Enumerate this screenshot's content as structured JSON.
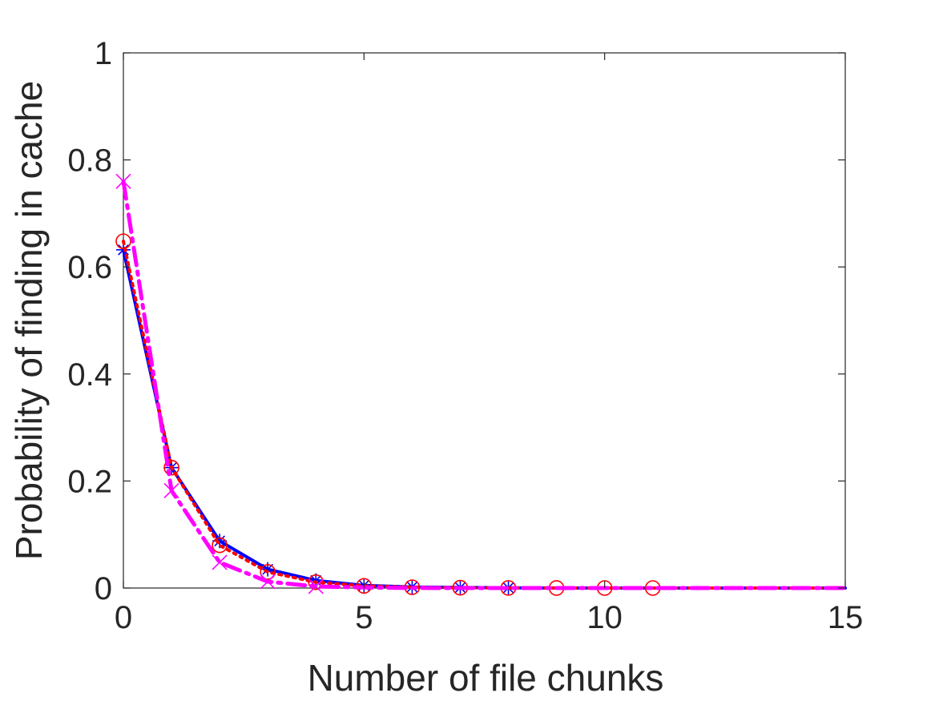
{
  "chart_data": {
    "type": "line",
    "xlabel": "Number of file chunks",
    "ylabel": "Probability of finding in cache",
    "xlim": [
      0,
      15
    ],
    "ylim": [
      0,
      1
    ],
    "xticks": [
      0,
      5,
      10,
      15
    ],
    "yticks": [
      0,
      0.2,
      0.4,
      0.6,
      0.8,
      1
    ],
    "xtick_labels": [
      "0",
      "5",
      "10",
      "15"
    ],
    "ytick_labels": [
      "0",
      "0.2",
      "0.4",
      "0.6",
      "0.8",
      "1"
    ],
    "grid": false,
    "series": [
      {
        "color": "#0000ff",
        "line_style": "solid",
        "marker": "asterisk",
        "x": [
          0,
          1,
          2,
          3,
          4,
          5,
          6,
          7,
          8,
          9,
          10,
          11,
          12,
          13,
          14,
          15
        ],
        "y": [
          0.632,
          0.225,
          0.088,
          0.035,
          0.014,
          0.005,
          0.002,
          0.001,
          0.0004,
          0,
          0,
          0,
          0,
          0,
          0,
          0
        ],
        "marker_x": [
          0,
          1,
          2,
          3,
          4,
          5,
          6,
          7,
          8
        ]
      },
      {
        "color": "#ff0000",
        "line_style": "dotted",
        "marker": "circle",
        "x": [
          0,
          1,
          2,
          3,
          4,
          5,
          6,
          7,
          8,
          9,
          10,
          11,
          12,
          13,
          14,
          15
        ],
        "y": [
          0.648,
          0.225,
          0.08,
          0.03,
          0.011,
          0.004,
          0.0015,
          0.0006,
          0.0002,
          0.0001,
          0,
          0,
          0,
          0,
          0,
          0
        ],
        "marker_x": [
          0,
          1,
          2,
          3,
          4,
          5,
          6,
          7,
          8,
          9,
          10,
          11
        ]
      },
      {
        "color": "#ff00ff",
        "line_style": "dashdot",
        "marker": "cross",
        "x": [
          0,
          1,
          2,
          3,
          4,
          5,
          6,
          7,
          8,
          9,
          10,
          11,
          12,
          13,
          14,
          15
        ],
        "y": [
          0.76,
          0.182,
          0.048,
          0.012,
          0.003,
          0.001,
          0.0002,
          0,
          0,
          0,
          0,
          0,
          0,
          0,
          0,
          0
        ],
        "marker_x": [
          0,
          1,
          2,
          3,
          4
        ]
      }
    ]
  }
}
